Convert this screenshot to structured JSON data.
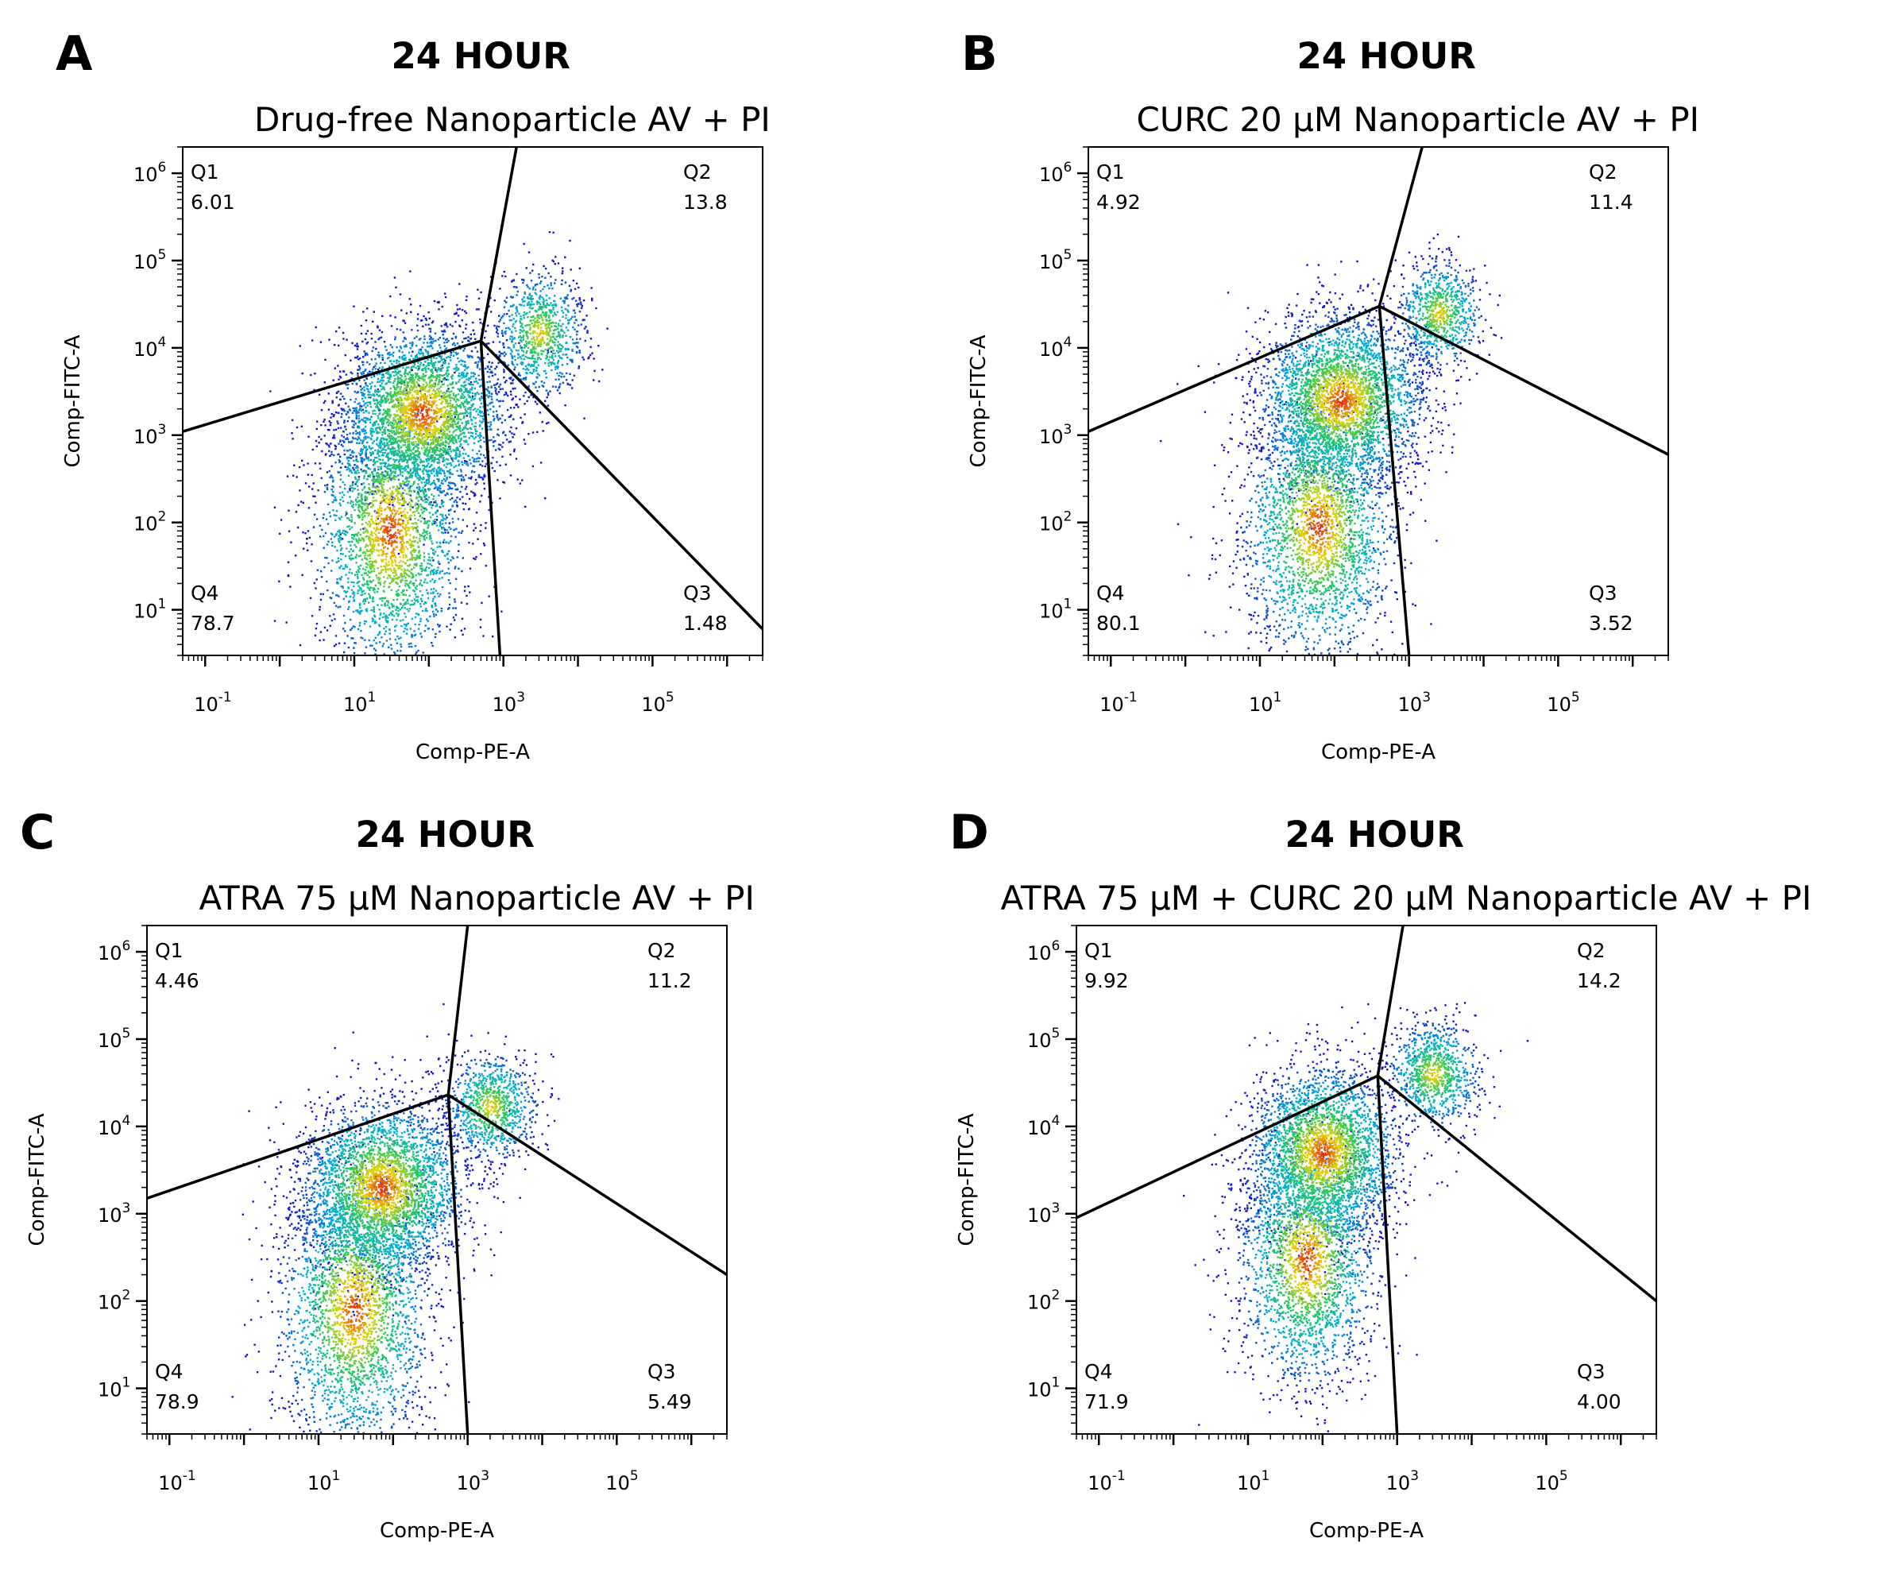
{
  "chart_data": [
    {
      "type": "scatter",
      "panel_label": "A",
      "time_label": "24 HOUR",
      "title": "Drug-free Nanoparticle  AV + PI",
      "xlabel": "Comp-PE-A",
      "ylabel": "Comp-FITC-A",
      "x_scale": "log",
      "y_scale": "log",
      "x_ticks": [
        "10^-1",
        "10^1",
        "10^3",
        "10^5"
      ],
      "y_ticks": [
        "10^1",
        "10^2",
        "10^3",
        "10^4",
        "10^5",
        "10^6"
      ],
      "xlim": [
        0.05,
        3000000
      ],
      "ylim": [
        3,
        2000000
      ],
      "quadrants": [
        {
          "name": "Q1",
          "value": "6.01"
        },
        {
          "name": "Q2",
          "value": "13.8"
        },
        {
          "name": "Q3",
          "value": "1.48"
        },
        {
          "name": "Q4",
          "value": "78.7"
        }
      ],
      "gate_center": [
        500,
        12000
      ],
      "gate_lines": [
        [
          [
            0.05,
            1100
          ],
          [
            500,
            12000
          ]
        ],
        [
          [
            500,
            12000
          ],
          [
            1500,
            2000000
          ]
        ],
        [
          [
            500,
            12000
          ],
          [
            900,
            3
          ]
        ],
        [
          [
            500,
            12000
          ],
          [
            3000000,
            6
          ]
        ]
      ],
      "populations": [
        {
          "x": 80,
          "y": 1800,
          "n": 3200,
          "sx": 0.55,
          "sy": 0.5
        },
        {
          "x": 30,
          "y": 80,
          "n": 2600,
          "sx": 0.5,
          "sy": 0.8
        },
        {
          "x": 3000,
          "y": 15000,
          "n": 900,
          "sx": 0.3,
          "sy": 0.35
        }
      ]
    },
    {
      "type": "scatter",
      "panel_label": "B",
      "time_label": "24 HOUR",
      "title": "CURC 20 μM Nanoparticle AV + PI",
      "xlabel": "Comp-PE-A",
      "ylabel": "Comp-FITC-A",
      "x_scale": "log",
      "y_scale": "log",
      "x_ticks": [
        "10^-1",
        "10^1",
        "10^3",
        "10^5"
      ],
      "y_ticks": [
        "10^1",
        "10^2",
        "10^3",
        "10^4",
        "10^5",
        "10^6"
      ],
      "xlim": [
        0.05,
        3000000
      ],
      "ylim": [
        3,
        2000000
      ],
      "quadrants": [
        {
          "name": "Q1",
          "value": "4.92"
        },
        {
          "name": "Q2",
          "value": "11.4"
        },
        {
          "name": "Q3",
          "value": "3.52"
        },
        {
          "name": "Q4",
          "value": "80.1"
        }
      ],
      "gate_center": [
        400,
        30000
      ],
      "gate_lines": [
        [
          [
            0.05,
            1100
          ],
          [
            400,
            30000
          ]
        ],
        [
          [
            400,
            30000
          ],
          [
            1500,
            2000000
          ]
        ],
        [
          [
            400,
            30000
          ],
          [
            1000,
            3
          ]
        ],
        [
          [
            400,
            30000
          ],
          [
            3000000,
            600
          ]
        ]
      ],
      "populations": [
        {
          "x": 120,
          "y": 2500,
          "n": 3200,
          "sx": 0.55,
          "sy": 0.5
        },
        {
          "x": 60,
          "y": 90,
          "n": 2600,
          "sx": 0.5,
          "sy": 0.75
        },
        {
          "x": 2500,
          "y": 25000,
          "n": 800,
          "sx": 0.28,
          "sy": 0.3
        }
      ]
    },
    {
      "type": "scatter",
      "panel_label": "C",
      "time_label": "24 HOUR",
      "title": "ATRA 75 μM Nanoparticle AV + PI",
      "xlabel": "Comp-PE-A",
      "ylabel": "Comp-FITC-A",
      "x_scale": "log",
      "y_scale": "log",
      "x_ticks": [
        "10^-1",
        "10^1",
        "10^3",
        "10^5"
      ],
      "y_ticks": [
        "10^1",
        "10^2",
        "10^3",
        "10^4",
        "10^5",
        "10^6"
      ],
      "xlim": [
        0.05,
        3000000
      ],
      "ylim": [
        3,
        2000000
      ],
      "quadrants": [
        {
          "name": "Q1",
          "value": "4.46"
        },
        {
          "name": "Q2",
          "value": "11.2"
        },
        {
          "name": "Q3",
          "value": "5.49"
        },
        {
          "name": "Q4",
          "value": "78.9"
        }
      ],
      "gate_center": [
        550,
        23000
      ],
      "gate_lines": [
        [
          [
            0.05,
            1500
          ],
          [
            550,
            23000
          ]
        ],
        [
          [
            550,
            23000
          ],
          [
            1000,
            2000000
          ]
        ],
        [
          [
            550,
            23000
          ],
          [
            1000,
            3
          ]
        ],
        [
          [
            550,
            23000
          ],
          [
            3000000,
            200
          ]
        ]
      ],
      "populations": [
        {
          "x": 70,
          "y": 2000,
          "n": 3200,
          "sx": 0.55,
          "sy": 0.5
        },
        {
          "x": 30,
          "y": 80,
          "n": 2600,
          "sx": 0.5,
          "sy": 0.8
        },
        {
          "x": 2000,
          "y": 17000,
          "n": 900,
          "sx": 0.3,
          "sy": 0.3
        }
      ]
    },
    {
      "type": "scatter",
      "panel_label": "D",
      "time_label": "24 HOUR",
      "title": "ATRA 75 μM + CURC 20 μM Nanoparticle AV + PI",
      "xlabel": "Comp-PE-A",
      "ylabel": "Comp-FITC-A",
      "x_scale": "log",
      "y_scale": "log",
      "x_ticks": [
        "10^-1",
        "10^1",
        "10^3",
        "10^5"
      ],
      "y_ticks": [
        "10^1",
        "10^2",
        "10^3",
        "10^4",
        "10^5",
        "10^6"
      ],
      "xlim": [
        0.05,
        3000000
      ],
      "ylim": [
        3,
        2000000
      ],
      "quadrants": [
        {
          "name": "Q1",
          "value": "9.92"
        },
        {
          "name": "Q2",
          "value": "14.2"
        },
        {
          "name": "Q3",
          "value": "4.00"
        },
        {
          "name": "Q4",
          "value": "71.9"
        }
      ],
      "gate_center": [
        550,
        38000
      ],
      "gate_lines": [
        [
          [
            0.05,
            900
          ],
          [
            550,
            38000
          ]
        ],
        [
          [
            550,
            38000
          ],
          [
            1200,
            2000000
          ]
        ],
        [
          [
            550,
            38000
          ],
          [
            1000,
            3
          ]
        ],
        [
          [
            550,
            38000
          ],
          [
            3000000,
            100
          ]
        ]
      ],
      "populations": [
        {
          "x": 100,
          "y": 5000,
          "n": 3000,
          "sx": 0.5,
          "sy": 0.5
        },
        {
          "x": 60,
          "y": 300,
          "n": 2200,
          "sx": 0.45,
          "sy": 0.7
        },
        {
          "x": 3000,
          "y": 40000,
          "n": 900,
          "sx": 0.3,
          "sy": 0.3
        }
      ]
    }
  ]
}
